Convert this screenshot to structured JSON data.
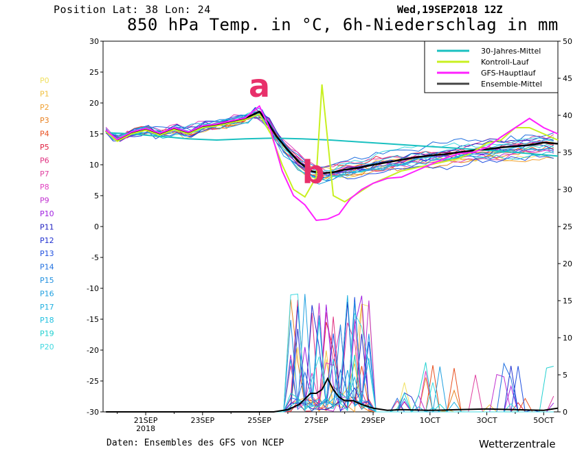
{
  "header": {
    "position": "Position   Lat: 38 Lon: 24",
    "run": "Wed,19SEP2018 12Z",
    "title": "850 hPa Temp. in °C, 6h-Niederschlag in mm"
  },
  "footer": {
    "source": "Daten: Ensembles des GFS von NCEP",
    "brand": "Wetterzentrale"
  },
  "colors": {
    "mean30": "#19c0c0",
    "control": "#c8f020",
    "gfs": "#ff20ff",
    "ensemble_mean": "#444444",
    "annotation": "#e8306a"
  },
  "members": [
    {
      "name": "P0",
      "color": "#f0e060"
    },
    {
      "name": "P1",
      "color": "#f0c040"
    },
    {
      "name": "P2",
      "color": "#f0a030"
    },
    {
      "name": "P3",
      "color": "#e88020"
    },
    {
      "name": "P4",
      "color": "#e85020"
    },
    {
      "name": "P5",
      "color": "#e02040"
    },
    {
      "name": "P6",
      "color": "#e03080"
    },
    {
      "name": "P7",
      "color": "#e040a0"
    },
    {
      "name": "P8",
      "color": "#e040c0"
    },
    {
      "name": "P9",
      "color": "#c030d0"
    },
    {
      "name": "P10",
      "color": "#a020e0"
    },
    {
      "name": "P11",
      "color": "#2020c0"
    },
    {
      "name": "P12",
      "color": "#2030d0"
    },
    {
      "name": "P13",
      "color": "#2050e0"
    },
    {
      "name": "P14",
      "color": "#2070e0"
    },
    {
      "name": "P15",
      "color": "#2090e0"
    },
    {
      "name": "P16",
      "color": "#20a0e0"
    },
    {
      "name": "P17",
      "color": "#20b0e0"
    },
    {
      "name": "P18",
      "color": "#20c0e0"
    },
    {
      "name": "P19",
      "color": "#20d0d0"
    },
    {
      "name": "P20",
      "color": "#40d8e0"
    }
  ],
  "chart_data": {
    "type": "line",
    "title": "850 hPa Temp. in °C, 6h-Niederschlag in mm",
    "x_ticks": [
      "21SEP",
      "23SEP",
      "25SEP",
      "27SEP",
      "29SEP",
      "1OCT",
      "3OCT",
      "5OCT"
    ],
    "x_ticks_sub": {
      "21SEP": "2018"
    },
    "x_range_days": [
      19.5,
      35.5
    ],
    "y_left": {
      "range": [
        -30,
        30
      ],
      "ticks": [
        30,
        25,
        20,
        15,
        10,
        5,
        0,
        -5,
        -10,
        -15,
        -20,
        -25,
        -30
      ],
      "unit": "°C"
    },
    "y_right": {
      "range": [
        0,
        50
      ],
      "ticks": [
        50,
        45,
        40,
        35,
        30,
        25,
        20,
        15,
        10,
        5,
        0
      ],
      "unit": "mm"
    },
    "legend": {
      "placement": "top-right",
      "entries": [
        "30-Jahres-Mittel",
        "Kontroll-Lauf",
        "GFS-Hauptlauf",
        "Ensemble-Mittel"
      ]
    },
    "annotations": [
      {
        "text": "a",
        "x": 25.0,
        "y": 21
      },
      {
        "text": "b",
        "x": 26.9,
        "y": 7
      }
    ],
    "series_temp": [
      {
        "name": "30-Jahres-Mittel",
        "x": [
          19.6,
          20.5,
          21.5,
          22.5,
          23.5,
          24.5,
          25.5,
          26.5,
          27.5,
          28.5,
          29.5,
          30.5,
          31.5,
          32.5,
          33.5,
          34.5,
          35.5
        ],
        "y": [
          15.2,
          15.0,
          14.6,
          14.2,
          14.0,
          14.2,
          14.3,
          14.2,
          14.0,
          13.7,
          13.4,
          13.1,
          12.8,
          12.5,
          12.2,
          11.8,
          11.4
        ]
      },
      {
        "name": "Ensemble-Mittel",
        "x": [
          19.6,
          20.0,
          20.5,
          21.0,
          21.5,
          22.0,
          22.5,
          23.0,
          23.5,
          24.0,
          24.5,
          25.0,
          25.3,
          25.6,
          26.0,
          26.4,
          26.8,
          27.2,
          27.6,
          28.0,
          28.5,
          29.0,
          29.5,
          30.0,
          30.5,
          31.0,
          31.5,
          32.0,
          32.5,
          33.0,
          33.5,
          34.0,
          34.5,
          35.0,
          35.5
        ],
        "y": [
          15.5,
          14.0,
          15.2,
          15.8,
          15.0,
          15.9,
          15.2,
          16.2,
          16.5,
          17.0,
          17.5,
          18.6,
          16.8,
          14.6,
          12.4,
          10.4,
          9.0,
          8.6,
          8.8,
          9.2,
          9.5,
          10.0,
          10.4,
          10.8,
          11.2,
          11.5,
          11.7,
          12.0,
          12.3,
          12.5,
          12.8,
          13.0,
          13.2,
          13.6,
          13.4
        ]
      },
      {
        "name": "Kontroll-Lauf",
        "x": [
          19.6,
          20.0,
          20.5,
          21.0,
          21.5,
          22.0,
          22.5,
          23.0,
          23.5,
          24.0,
          24.5,
          25.0,
          25.4,
          25.8,
          26.2,
          26.6,
          27.0,
          27.2,
          27.4,
          27.6,
          28.0,
          28.5,
          29.0,
          29.5,
          30.0,
          30.5,
          31.0,
          31.5,
          32.0,
          32.5,
          33.0,
          33.5,
          34.0,
          34.5,
          35.0,
          35.5
        ],
        "y": [
          15.4,
          13.8,
          15.0,
          15.6,
          14.8,
          15.7,
          15.0,
          16.0,
          16.3,
          16.8,
          17.3,
          18.2,
          15.0,
          10.0,
          6.0,
          4.8,
          8.0,
          23.0,
          14.0,
          5.0,
          4.0,
          5.5,
          7.0,
          8.0,
          9.0,
          9.5,
          10.0,
          10.5,
          11.0,
          12.0,
          13.5,
          14.0,
          16.0,
          16.0,
          15.0,
          14.0
        ]
      },
      {
        "name": "GFS-Hauptlauf",
        "x": [
          19.6,
          20.0,
          20.5,
          21.0,
          21.5,
          22.0,
          22.5,
          23.0,
          23.5,
          24.0,
          24.5,
          25.0,
          25.4,
          25.8,
          26.2,
          26.6,
          27.0,
          27.4,
          27.8,
          28.2,
          28.6,
          29.0,
          29.5,
          30.0,
          30.5,
          31.0,
          31.5,
          32.0,
          32.5,
          33.0,
          33.5,
          34.0,
          34.5,
          35.0,
          35.5
        ],
        "y": [
          15.6,
          14.1,
          15.3,
          15.9,
          15.1,
          16.0,
          15.3,
          16.3,
          16.6,
          17.1,
          17.6,
          19.5,
          15.5,
          9.0,
          5.0,
          3.5,
          1.0,
          1.2,
          2.0,
          4.5,
          6.0,
          7.0,
          7.8,
          8.0,
          9.0,
          10.0,
          11.0,
          11.8,
          12.0,
          12.8,
          14.5,
          16.0,
          17.5,
          16.0,
          15.0
        ]
      }
    ],
    "series_precip_mean": {
      "name": "Ensemble-Mittel",
      "x": [
        19.6,
        25.5,
        26.0,
        26.4,
        26.8,
        27.0,
        27.2,
        27.4,
        27.6,
        27.8,
        28.0,
        28.3,
        28.6,
        29.0,
        29.5,
        30.0,
        31.0,
        32.0,
        33.0,
        34.0,
        35.0,
        35.5
      ],
      "y": [
        0,
        0,
        0.3,
        1.0,
        2.5,
        2.5,
        3.0,
        4.5,
        3.0,
        2.0,
        1.5,
        1.5,
        1.0,
        0.5,
        0.2,
        0.3,
        0.2,
        0.3,
        0.4,
        0.3,
        0.2,
        0.5
      ]
    }
  }
}
